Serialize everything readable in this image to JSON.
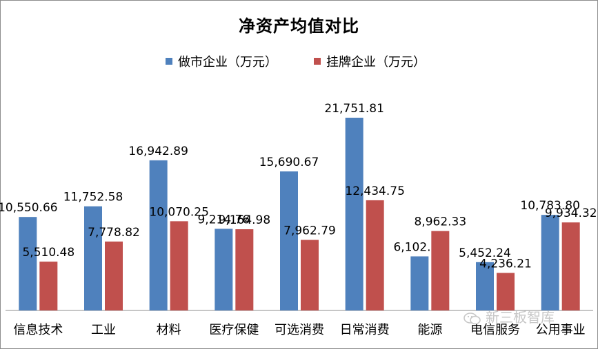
{
  "chart_data": {
    "type": "bar",
    "title": "净资产均值对比",
    "categories": [
      "信息技术",
      "工业",
      "材料",
      "医疗保健",
      "可选消费",
      "日常消费",
      "能源",
      "电信服务",
      "公用事业"
    ],
    "series": [
      {
        "name": "做市企业（万元）",
        "color": "#4f81bd",
        "values": [
          10550.66,
          11752.58,
          16942.89,
          9214.76,
          15690.67,
          21751.81,
          6102.87,
          5452.24,
          10783.8
        ],
        "labels": [
          "10,550.66",
          "11,752.58",
          "16,942.89",
          "9,214.76",
          "15,690.67",
          "21,751.81",
          "6,102.87",
          "5,452.24",
          "10,783.80"
        ]
      },
      {
        "name": "挂牌企业（万元）",
        "color": "#c0504d",
        "values": [
          5510.48,
          7778.82,
          10070.25,
          9164.98,
          7962.79,
          12434.75,
          8962.33,
          4236.21,
          9934.32
        ],
        "labels": [
          "5,510.48",
          "7,778.82",
          "10,070.25",
          "9,164.98",
          "7,962.79",
          "12,434.75",
          "8,962.33",
          "4,236.21",
          "9,934.32"
        ]
      }
    ],
    "ylim": [
      0,
      22000
    ],
    "grid": false,
    "legend_position": "top"
  },
  "watermark": {
    "text": "新三板智库",
    "icon": "wechat-icon"
  }
}
